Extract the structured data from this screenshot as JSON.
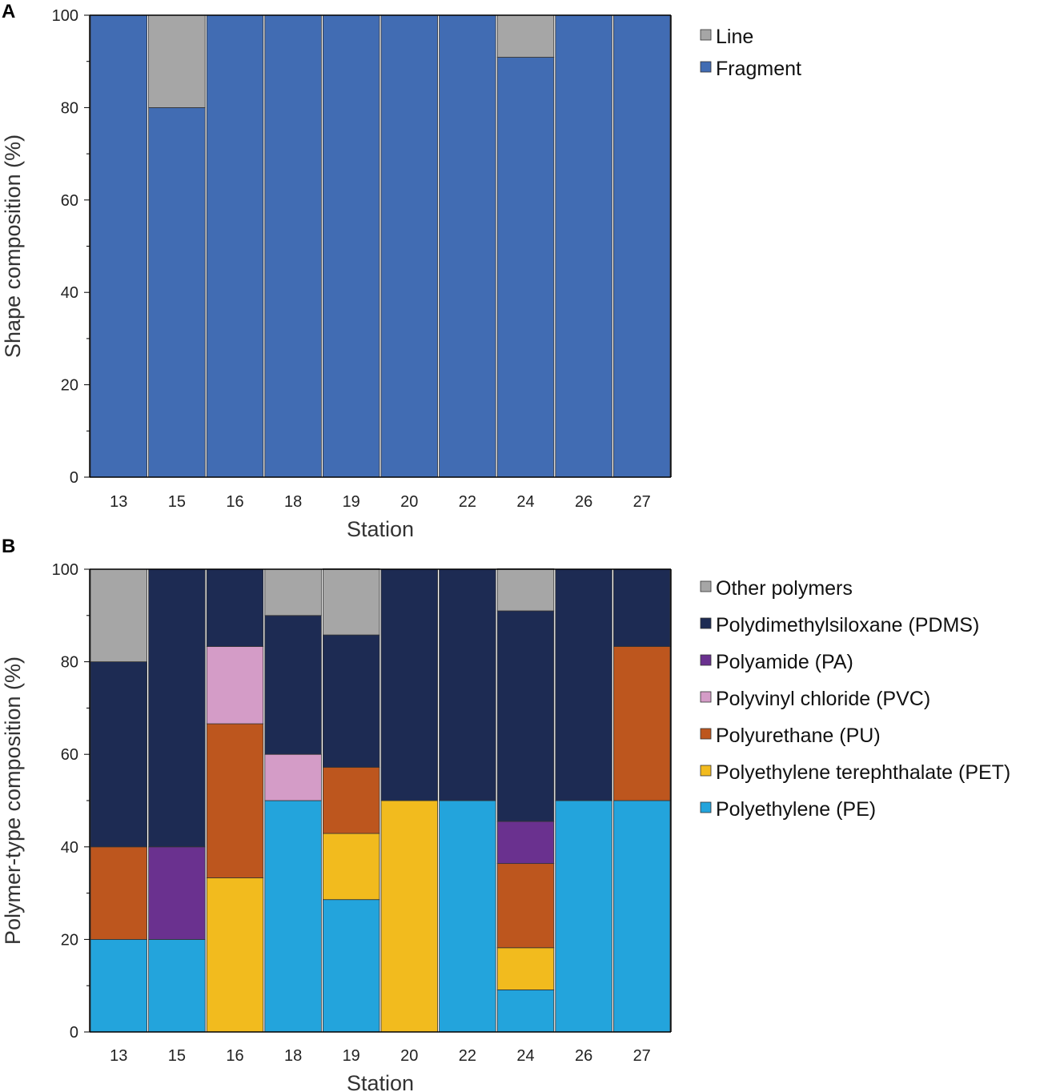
{
  "chart_data": [
    {
      "panel": "A",
      "type": "bar",
      "stacked": true,
      "xlabel": "Station",
      "ylabel": "Shape composition (%)",
      "ylim": [
        0,
        100
      ],
      "yticks": [
        0,
        20,
        40,
        60,
        80,
        100
      ],
      "categories": [
        "13",
        "15",
        "16",
        "18",
        "19",
        "20",
        "22",
        "24",
        "26",
        "27"
      ],
      "legend_position": "right",
      "series": [
        {
          "name": "Fragment",
          "color": "#416CB3",
          "values": [
            100,
            80,
            100,
            100,
            100,
            100,
            100,
            90.9,
            100,
            100
          ]
        },
        {
          "name": "Line",
          "color": "#A6A6A6",
          "values": [
            0,
            20,
            0,
            0,
            0,
            0,
            0,
            9.1,
            0,
            0
          ]
        }
      ]
    },
    {
      "panel": "B",
      "type": "bar",
      "stacked": true,
      "xlabel": "Station",
      "ylabel": "Polymer-type composition (%)",
      "ylim": [
        0,
        100
      ],
      "yticks": [
        0,
        20,
        40,
        60,
        80,
        100
      ],
      "categories": [
        "13",
        "15",
        "16",
        "18",
        "19",
        "20",
        "22",
        "24",
        "26",
        "27"
      ],
      "legend_position": "right",
      "series": [
        {
          "name": "Polyethylene (PE)",
          "color": "#23A4DC",
          "values": [
            20,
            20,
            0,
            50,
            28.6,
            0,
            50,
            9.1,
            50,
            50
          ]
        },
        {
          "name": "Polyethylene terephthalate (PET)",
          "color": "#F2BB1E",
          "values": [
            0,
            0,
            33.3,
            0,
            14.3,
            50,
            0,
            9.1,
            0,
            0
          ]
        },
        {
          "name": "Polyurethane (PU)",
          "color": "#BD561E",
          "values": [
            20,
            0,
            33.3,
            0,
            14.3,
            0,
            0,
            18.2,
            0,
            33.3
          ]
        },
        {
          "name": "Polyvinyl chloride (PVC)",
          "color": "#D49CC7",
          "values": [
            0,
            0,
            16.7,
            10,
            0,
            0,
            0,
            0,
            0,
            0
          ]
        },
        {
          "name": "Polyamide (PA)",
          "color": "#6A318F",
          "values": [
            0,
            20,
            0,
            0,
            0,
            0,
            0,
            9.1,
            0,
            0
          ]
        },
        {
          "name": "Polydimethylsiloxane (PDMS)",
          "color": "#1D2B53",
          "values": [
            40,
            60,
            16.7,
            30,
            28.6,
            50,
            50,
            45.5,
            50,
            16.7
          ]
        },
        {
          "name": "Other polymers",
          "color": "#A6A6A6",
          "values": [
            20,
            0,
            0,
            10,
            14.3,
            0,
            0,
            9.1,
            0,
            0
          ]
        }
      ]
    }
  ]
}
